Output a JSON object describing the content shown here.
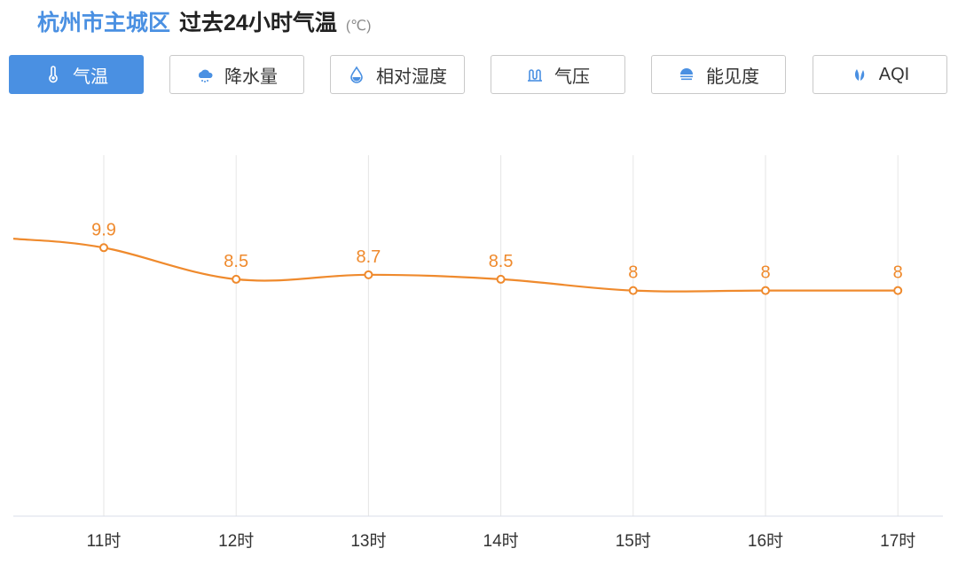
{
  "header": {
    "city": "杭州市主城区",
    "title": "过去24小时气温",
    "unit": "(℃)"
  },
  "tabs": [
    {
      "label": "气温",
      "icon": "thermometer-icon",
      "active": true
    },
    {
      "label": "降水量",
      "icon": "rain-cloud-icon",
      "active": false
    },
    {
      "label": "相对湿度",
      "icon": "water-drop-icon",
      "active": false
    },
    {
      "label": "气压",
      "icon": "pressure-icon",
      "active": false
    },
    {
      "label": "能见度",
      "icon": "visibility-icon",
      "active": false
    },
    {
      "label": "AQI",
      "icon": "leaf-icon",
      "active": false
    }
  ],
  "colors": {
    "accent": "#4a90e2",
    "line": "#ef8a2d",
    "grid": "#e6e6e6",
    "axis": "#d9dee8"
  },
  "chart_data": {
    "type": "line",
    "categories": [
      "11时",
      "12时",
      "13时",
      "14时",
      "15时",
      "16时",
      "17时"
    ],
    "values": [
      9.9,
      8.5,
      8.7,
      8.5,
      8,
      8,
      8
    ],
    "data_labels": [
      "9.9",
      "8.5",
      "8.7",
      "8.5",
      "8",
      "8",
      "8"
    ],
    "leading_value": 10.3,
    "ylim": [
      -2,
      14
    ],
    "grid": "vertical",
    "title": "",
    "xlabel": "",
    "ylabel": ""
  }
}
